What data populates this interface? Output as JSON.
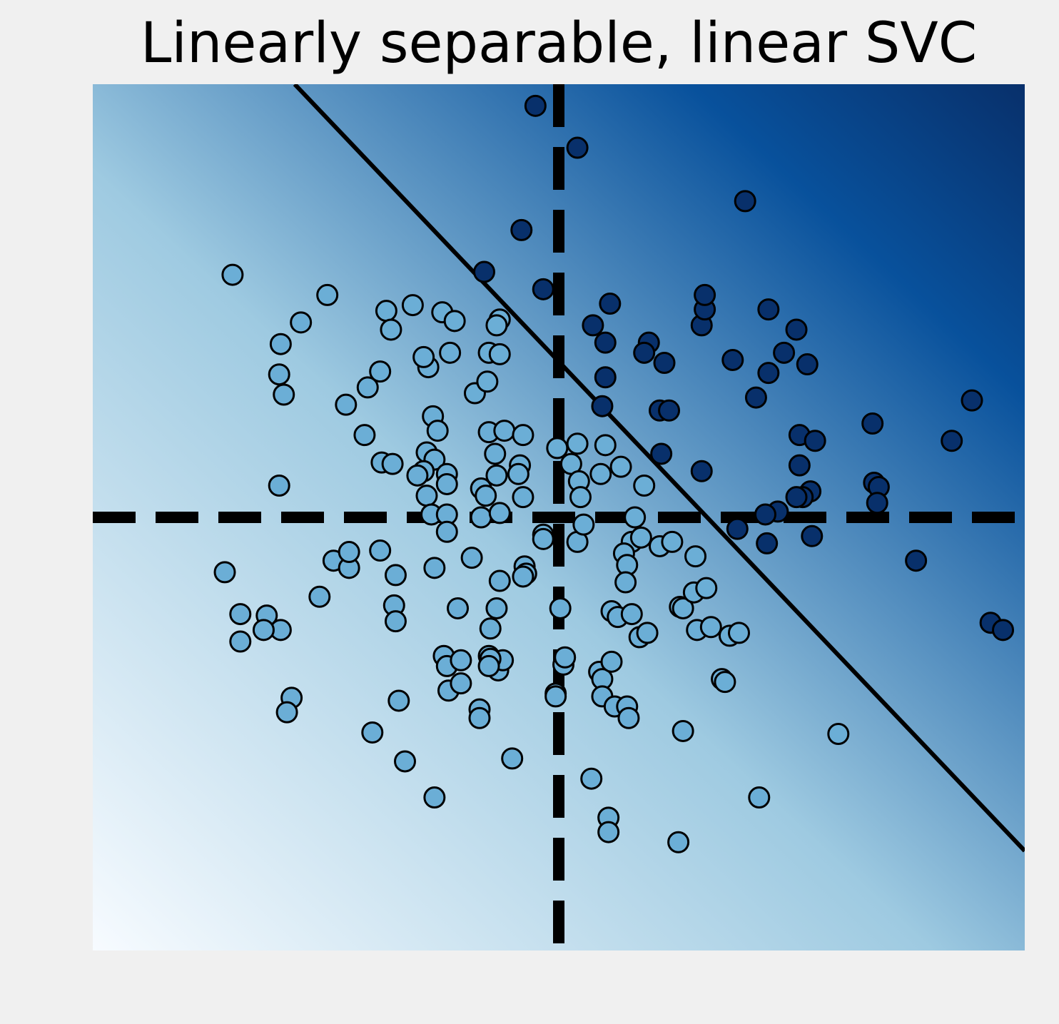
{
  "chart_data": {
    "type": "scatter",
    "title": "Linearly separable, linear SVC",
    "xlabel": "",
    "ylabel": "",
    "xlim": [
      -3,
      3
    ],
    "ylim": [
      -3,
      3
    ],
    "grid": false,
    "legend": "none",
    "axis_ticks_visible": false,
    "background": "decision function shading (Blues colormap, increasing toward upper-right)",
    "colors": {
      "class_0": "#6baed6",
      "class_1": "#08306b",
      "point_edge": "#000000",
      "axis_lines": "#000000",
      "figure_bg": "#f0f0f0",
      "gradient_low": "#f7fbff",
      "gradient_mid": "#9ecae1",
      "gradient_high": "#08519c",
      "gradient_top": "#08306b"
    },
    "reference_lines": [
      {
        "orientation": "horizontal",
        "value": 0,
        "style": "dashed"
      },
      {
        "orientation": "vertical",
        "value": 0,
        "style": "dashed"
      }
    ],
    "decision_boundary": {
      "style": "solid",
      "points": [
        [
          -1.7,
          3.0
        ],
        [
          3.0,
          -2.31
        ]
      ]
    },
    "series": [
      {
        "class": 0,
        "points": [
          [
            -2.1,
            1.68
          ],
          [
            -1.49,
            1.54
          ],
          [
            -1.66,
            1.35
          ],
          [
            -1.11,
            1.43
          ],
          [
            -0.94,
            1.47
          ],
          [
            -1.79,
            1.2
          ],
          [
            -1.8,
            0.99
          ],
          [
            -1.77,
            0.85
          ],
          [
            -1.37,
            0.78
          ],
          [
            -1.23,
            0.9
          ],
          [
            -1.08,
            1.3
          ],
          [
            -1.15,
            1.01
          ],
          [
            -0.84,
            1.04
          ],
          [
            -0.87,
            1.11
          ],
          [
            -0.75,
            1.42
          ],
          [
            -0.67,
            1.36
          ],
          [
            -0.7,
            1.14
          ],
          [
            -0.45,
            1.14
          ],
          [
            -0.38,
            1.13
          ],
          [
            -0.38,
            1.37
          ],
          [
            -0.4,
            1.33
          ],
          [
            -0.54,
            0.86
          ],
          [
            -0.46,
            0.94
          ],
          [
            -0.81,
            0.7
          ],
          [
            -0.78,
            0.6
          ],
          [
            -0.45,
            0.59
          ],
          [
            -0.35,
            0.6
          ],
          [
            -0.23,
            0.57
          ],
          [
            -1.25,
            0.57
          ],
          [
            -0.85,
            0.45
          ],
          [
            -0.8,
            0.4
          ],
          [
            -0.87,
            0.32
          ],
          [
            -1.14,
            0.38
          ],
          [
            -1.07,
            0.37
          ],
          [
            -0.91,
            0.29
          ],
          [
            -0.85,
            0.15
          ],
          [
            -0.72,
            0.3
          ],
          [
            -0.72,
            0.23
          ],
          [
            -0.5,
            0.2
          ],
          [
            -0.41,
            0.44
          ],
          [
            -0.4,
            0.29
          ],
          [
            -0.25,
            0.36
          ],
          [
            -0.26,
            0.3
          ],
          [
            -0.23,
            0.14
          ],
          [
            -0.47,
            0.15
          ],
          [
            -0.5,
            0.0
          ],
          [
            -0.38,
            0.03
          ],
          [
            -0.82,
            0.02
          ],
          [
            -0.72,
            0.02
          ],
          [
            -0.72,
            -0.1
          ],
          [
            -1.8,
            0.22
          ],
          [
            -0.01,
            0.48
          ],
          [
            0.12,
            0.51
          ],
          [
            0.08,
            0.37
          ],
          [
            0.13,
            0.25
          ],
          [
            0.14,
            0.14
          ],
          [
            0.3,
            0.5
          ],
          [
            0.4,
            0.35
          ],
          [
            0.27,
            0.3
          ],
          [
            0.55,
            0.22
          ],
          [
            -0.1,
            -0.12
          ],
          [
            -0.1,
            -0.15
          ],
          [
            0.12,
            -0.17
          ],
          [
            0.16,
            -0.05
          ],
          [
            0.49,
            0.0
          ],
          [
            0.47,
            -0.17
          ],
          [
            0.53,
            -0.14
          ],
          [
            0.65,
            -0.2
          ],
          [
            0.73,
            -0.17
          ],
          [
            0.88,
            -0.27
          ],
          [
            0.42,
            -0.25
          ],
          [
            0.44,
            -0.33
          ],
          [
            0.43,
            -0.45
          ],
          [
            -2.15,
            -0.38
          ],
          [
            -1.45,
            -0.3
          ],
          [
            -1.35,
            -0.35
          ],
          [
            -1.15,
            -0.23
          ],
          [
            -1.05,
            -0.4
          ],
          [
            -1.35,
            -0.24
          ],
          [
            -0.8,
            -0.35
          ],
          [
            -0.56,
            -0.28
          ],
          [
            -0.38,
            -0.44
          ],
          [
            -0.22,
            -0.34
          ],
          [
            -0.21,
            -0.39
          ],
          [
            -0.23,
            -0.41
          ],
          [
            -1.06,
            -0.61
          ],
          [
            -0.65,
            -0.63
          ],
          [
            -0.4,
            -0.63
          ],
          [
            -0.44,
            -0.77
          ],
          [
            -1.54,
            -0.55
          ],
          [
            -1.88,
            -0.68
          ],
          [
            -1.79,
            -0.78
          ],
          [
            -1.9,
            -0.78
          ],
          [
            -1.05,
            -0.72
          ],
          [
            0.01,
            -0.63
          ],
          [
            0.34,
            -0.65
          ],
          [
            0.38,
            -0.69
          ],
          [
            0.47,
            -0.67
          ],
          [
            0.52,
            -0.83
          ],
          [
            0.57,
            -0.8
          ],
          [
            0.78,
            -0.62
          ],
          [
            0.8,
            -0.63
          ],
          [
            0.87,
            -0.52
          ],
          [
            0.95,
            -0.49
          ],
          [
            0.89,
            -0.78
          ],
          [
            0.98,
            -0.76
          ],
          [
            1.1,
            -0.82
          ],
          [
            1.16,
            -0.8
          ],
          [
            1.05,
            -1.12
          ],
          [
            1.07,
            -1.14
          ],
          [
            -2.05,
            -0.67
          ],
          [
            -2.05,
            -0.86
          ],
          [
            -0.74,
            -0.96
          ],
          [
            -0.72,
            -1.03
          ],
          [
            -0.63,
            -0.99
          ],
          [
            -0.45,
            -0.96
          ],
          [
            -0.39,
            -1.06
          ],
          [
            -0.36,
            -0.99
          ],
          [
            -0.44,
            -0.98
          ],
          [
            -0.71,
            -1.2
          ],
          [
            -0.63,
            -1.15
          ],
          [
            -0.45,
            -1.03
          ],
          [
            -1.72,
            -1.25
          ],
          [
            -1.75,
            -1.35
          ],
          [
            -1.03,
            -1.27
          ],
          [
            -0.51,
            -1.33
          ],
          [
            -0.51,
            -1.39
          ],
          [
            -0.02,
            -1.22
          ],
          [
            -0.02,
            -1.24
          ],
          [
            0.03,
            -1.02
          ],
          [
            0.04,
            -0.97
          ],
          [
            0.26,
            -1.07
          ],
          [
            0.28,
            -1.12
          ],
          [
            0.34,
            -1.0
          ],
          [
            0.28,
            -1.24
          ],
          [
            0.36,
            -1.31
          ],
          [
            0.44,
            -1.31
          ],
          [
            0.45,
            -1.39
          ],
          [
            -1.2,
            -1.49
          ],
          [
            -0.3,
            -1.67
          ],
          [
            -0.99,
            -1.69
          ],
          [
            -0.8,
            -1.94
          ],
          [
            0.21,
            -1.81
          ],
          [
            0.32,
            -2.08
          ],
          [
            0.32,
            -2.18
          ],
          [
            0.77,
            -2.25
          ],
          [
            0.8,
            -1.48
          ],
          [
            1.29,
            -1.94
          ],
          [
            1.8,
            -1.5
          ]
        ]
      },
      {
        "class": 1,
        "points": [
          [
            -0.15,
            2.85
          ],
          [
            0.12,
            2.56
          ],
          [
            -0.24,
            1.99
          ],
          [
            -0.48,
            1.7
          ],
          [
            -0.1,
            1.58
          ],
          [
            0.33,
            1.48
          ],
          [
            0.22,
            1.33
          ],
          [
            0.3,
            1.21
          ],
          [
            0.58,
            1.21
          ],
          [
            0.55,
            1.14
          ],
          [
            0.68,
            1.07
          ],
          [
            0.3,
            0.97
          ],
          [
            0.28,
            0.77
          ],
          [
            0.65,
            0.74
          ],
          [
            0.71,
            0.74
          ],
          [
            0.66,
            0.44
          ],
          [
            0.92,
            1.33
          ],
          [
            0.94,
            1.44
          ],
          [
            0.94,
            1.54
          ],
          [
            1.2,
            2.19
          ],
          [
            1.45,
            1.14
          ],
          [
            1.6,
            1.06
          ],
          [
            1.27,
            0.83
          ],
          [
            1.55,
            0.57
          ],
          [
            1.65,
            0.53
          ],
          [
            1.55,
            0.36
          ],
          [
            1.62,
            0.18
          ],
          [
            1.57,
            0.14
          ],
          [
            1.53,
            0.14
          ],
          [
            1.41,
            0.04
          ],
          [
            1.33,
            0.02
          ],
          [
            1.15,
            -0.08
          ],
          [
            1.34,
            -0.18
          ],
          [
            1.63,
            -0.13
          ],
          [
            0.92,
            0.32
          ],
          [
            2.02,
            0.65
          ],
          [
            2.03,
            0.24
          ],
          [
            2.06,
            0.21
          ],
          [
            2.05,
            0.1
          ],
          [
            2.53,
            0.53
          ],
          [
            2.66,
            0.81
          ],
          [
            2.3,
            -0.3
          ],
          [
            2.78,
            -0.73
          ],
          [
            2.86,
            -0.78
          ],
          [
            1.35,
            1.0
          ],
          [
            1.12,
            1.09
          ],
          [
            1.53,
            1.3
          ],
          [
            1.35,
            1.44
          ]
        ]
      }
    ]
  }
}
